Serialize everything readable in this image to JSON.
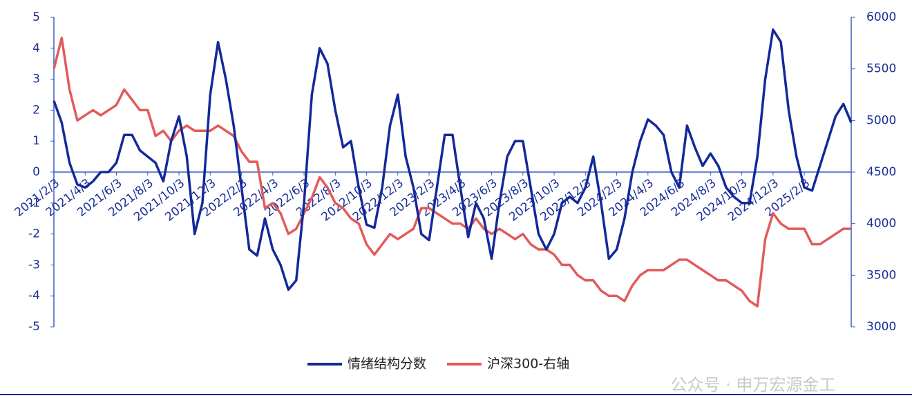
{
  "chart_data": {
    "type": "line",
    "categories": [
      "2021/2/3",
      null,
      null,
      null,
      "2021/4/3",
      null,
      null,
      null,
      "2021/6/3",
      null,
      null,
      null,
      "2021/8/3",
      null,
      null,
      null,
      "2021/10/3",
      null,
      null,
      null,
      "2021/12/3",
      null,
      null,
      null,
      "2022/2/3",
      null,
      null,
      null,
      "2022/4/3",
      null,
      null,
      null,
      "2022/6/3",
      null,
      null,
      null,
      "2022/8/3",
      null,
      null,
      null,
      "2022/10/3",
      null,
      null,
      null,
      "2022/12/3",
      null,
      null,
      null,
      "2023/2/3",
      null,
      null,
      null,
      "2023/4/3",
      null,
      null,
      null,
      "2023/6/3",
      null,
      null,
      null,
      "2023/8/3",
      null,
      null,
      null,
      "2023/10/3",
      null,
      null,
      null,
      "2023/12/3",
      null,
      null,
      null,
      "2024/2/3",
      null,
      null,
      null,
      "2024/4/3",
      null,
      null,
      null,
      "2024/6/3",
      null,
      null,
      null,
      "2024/8/3",
      null,
      null,
      null,
      "2024/10/3",
      null,
      null,
      null,
      "2024/12/3",
      null,
      null,
      null,
      "2025/2/3",
      null,
      null,
      null,
      null,
      null,
      null
    ],
    "series": [
      {
        "name": "情绪结构分数",
        "color": "#13299a",
        "values": [
          2.3,
          1.6,
          0.3,
          -0.4,
          -0.5,
          -0.3,
          0.0,
          0.0,
          0.3,
          1.2,
          1.2,
          0.7,
          0.5,
          0.3,
          -0.3,
          1.0,
          1.8,
          0.5,
          -2.0,
          -1.0,
          2.5,
          4.2,
          3.0,
          1.5,
          -0.5,
          -2.5,
          -2.7,
          -1.5,
          -2.5,
          -3.0,
          -3.8,
          -3.5,
          -1.0,
          2.5,
          4.0,
          3.5,
          2.0,
          0.8,
          1.0,
          -0.5,
          -1.7,
          -1.8,
          -0.5,
          1.5,
          2.5,
          0.5,
          -0.5,
          -2.0,
          -2.2,
          -0.5,
          1.2,
          1.2,
          -0.5,
          -2.1,
          -1.0,
          -1.5,
          -2.8,
          -1.0,
          0.5,
          1.0,
          1.0,
          -0.5,
          -2.0,
          -2.5,
          -2.0,
          -1.0,
          -0.8,
          -1.0,
          -0.5,
          0.5,
          -1.0,
          -2.8,
          -2.5,
          -1.5,
          0.0,
          1.0,
          1.7,
          1.5,
          1.2,
          0.0,
          -0.5,
          1.5,
          0.8,
          0.2,
          0.6,
          0.2,
          -0.5,
          -0.8,
          -1.0,
          -1.0,
          0.5,
          3.0,
          4.6,
          4.2,
          2.0,
          0.5,
          -0.5,
          -0.6,
          0.2,
          1.0,
          1.8,
          2.2,
          1.6
        ]
      },
      {
        "name": "沪深300-右轴",
        "color": "#e25b5b",
        "axis": "y2",
        "values": [
          5500,
          5800,
          5300,
          5000,
          5050,
          5100,
          5050,
          5100,
          5150,
          5300,
          5200,
          5100,
          5100,
          4850,
          4900,
          4800,
          4900,
          4950,
          4900,
          4900,
          4900,
          4950,
          4900,
          4850,
          4700,
          4600,
          4600,
          4150,
          4200,
          4100,
          3900,
          3950,
          4100,
          4250,
          4450,
          4350,
          4200,
          4150,
          4050,
          4000,
          3800,
          3700,
          3800,
          3900,
          3850,
          3900,
          3950,
          4150,
          4150,
          4100,
          4050,
          4000,
          4000,
          3950,
          4050,
          3950,
          3900,
          3950,
          3900,
          3850,
          3900,
          3800,
          3750,
          3750,
          3700,
          3600,
          3600,
          3500,
          3450,
          3450,
          3350,
          3300,
          3300,
          3250,
          3400,
          3500,
          3550,
          3550,
          3550,
          3600,
          3650,
          3650,
          3600,
          3550,
          3500,
          3450,
          3450,
          3400,
          3350,
          3250,
          3200,
          3850,
          4100,
          4000,
          3950,
          3950,
          3950,
          3800,
          3800,
          3850,
          3900,
          3950,
          3950
        ]
      }
    ],
    "ylim": [
      -5,
      5
    ],
    "yticks": [
      -5,
      -4,
      -3,
      -2,
      -1,
      0,
      1,
      2,
      3,
      4,
      5
    ],
    "y2lim": [
      3000,
      6000
    ],
    "y2ticks": [
      3000,
      3500,
      4000,
      4500,
      5000,
      5500,
      6000
    ],
    "grid": false,
    "legend": "bottom",
    "annotation": "公众号 · 申万宏源金工"
  }
}
